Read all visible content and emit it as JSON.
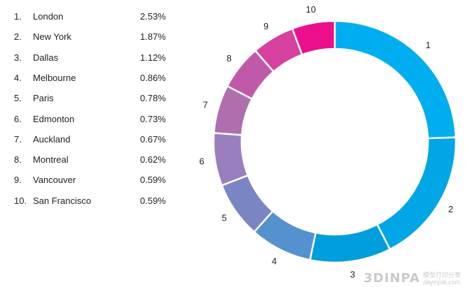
{
  "chart_data": {
    "type": "pie",
    "title": "",
    "donut": true,
    "categories": [
      "London",
      "New York",
      "Dallas",
      "Melbourne",
      "Paris",
      "Edmonton",
      "Auckland",
      "Montreal",
      "Vancouver",
      "San Francisco"
    ],
    "ranks": [
      "1.",
      "2.",
      "3.",
      "4.",
      "5.",
      "6.",
      "7.",
      "8.",
      "9.",
      "10."
    ],
    "segment_labels": [
      "1",
      "2",
      "3",
      "4",
      "5",
      "6",
      "7",
      "8",
      "9",
      "10"
    ],
    "values": [
      2.53,
      1.87,
      1.12,
      0.86,
      0.78,
      0.73,
      0.67,
      0.62,
      0.59,
      0.59
    ],
    "value_labels": [
      "2.53%",
      "1.87%",
      "1.12%",
      "0.86%",
      "0.78%",
      "0.73%",
      "0.67%",
      "0.62%",
      "0.59%",
      "0.59%"
    ],
    "colors": [
      "#00aeef",
      "#00a6e6",
      "#009edc",
      "#5591cf",
      "#7a86c4",
      "#9a7fbe",
      "#af6faf",
      "#c05aa8",
      "#d6409f",
      "#ec0f8c"
    ]
  },
  "watermark": {
    "logo": "3DINPA",
    "line1": "模型打印分享",
    "line2": "dayinpai.com"
  }
}
